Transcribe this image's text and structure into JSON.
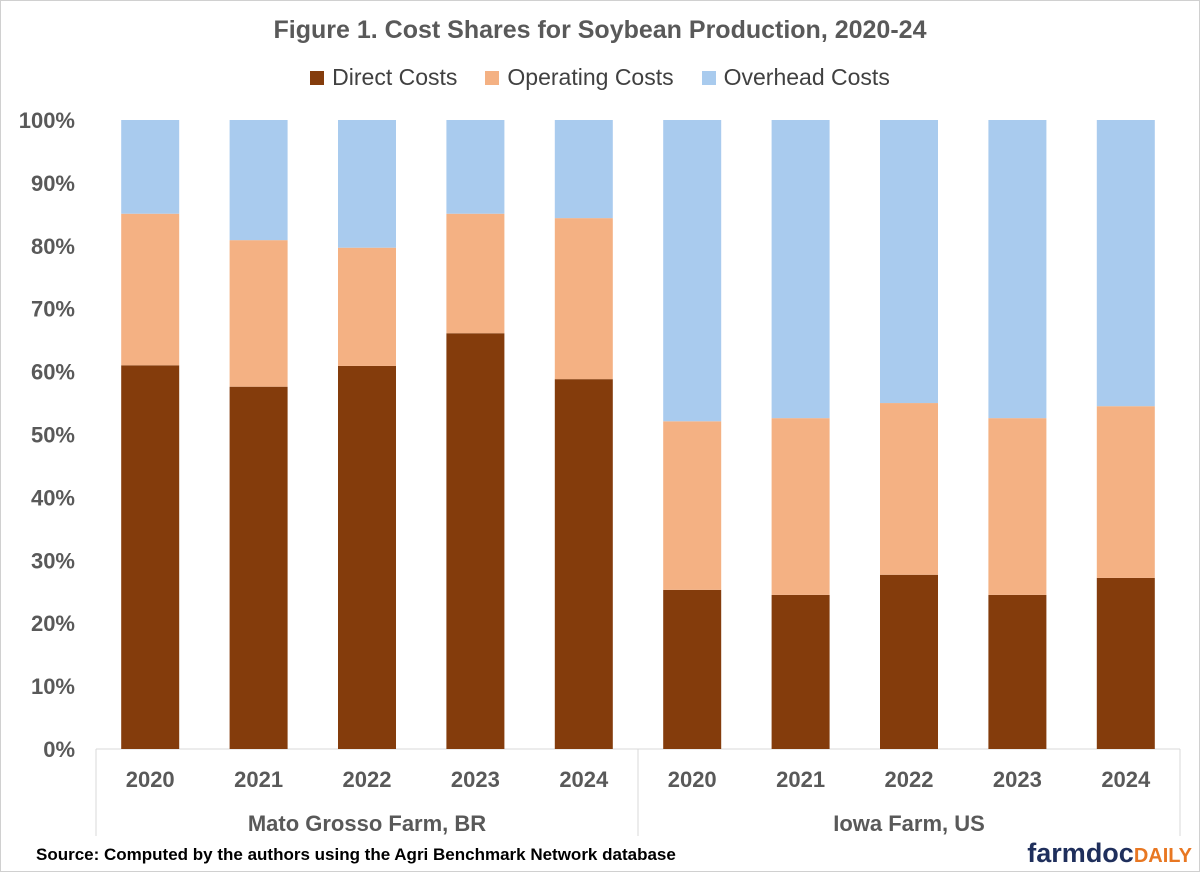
{
  "chart_data": {
    "type": "bar",
    "stacked": true,
    "percent_stacked": true,
    "title": "Figure 1. Cost Shares for Soybean Production, 2020-24",
    "categories": [
      "2020",
      "2021",
      "2022",
      "2023",
      "2024",
      "2020",
      "2021",
      "2022",
      "2023",
      "2024"
    ],
    "groups": [
      {
        "label": "Mato Grosso Farm, BR",
        "count": 5
      },
      {
        "label": "Iowa Farm, US",
        "count": 5
      }
    ],
    "series": [
      {
        "name": "Direct Costs",
        "color": "#843c0c",
        "values": [
          61,
          57.6,
          60.9,
          66.1,
          58.8,
          25.3,
          24.5,
          27.7,
          24.5,
          27.2
        ]
      },
      {
        "name": "Operating Costs",
        "color": "#f4b183",
        "values": [
          24.1,
          23.3,
          18.8,
          19.0,
          25.6,
          26.8,
          28.1,
          27.3,
          28.1,
          27.3
        ]
      },
      {
        "name": "Overhead Costs",
        "color": "#a9cbee",
        "values": [
          14.9,
          19.1,
          20.3,
          14.9,
          15.6,
          47.9,
          47.4,
          45.0,
          47.4,
          45.5
        ]
      }
    ],
    "ylim": [
      0,
      100
    ],
    "yticks": [
      "0%",
      "10%",
      "20%",
      "30%",
      "40%",
      "50%",
      "60%",
      "70%",
      "80%",
      "90%",
      "100%"
    ],
    "grid": false,
    "legend": "top"
  },
  "source": "Source: Computed by the authors using the Agri Benchmark Network database",
  "logo": {
    "part1": "farmdoc",
    "part2": "DAILY"
  }
}
